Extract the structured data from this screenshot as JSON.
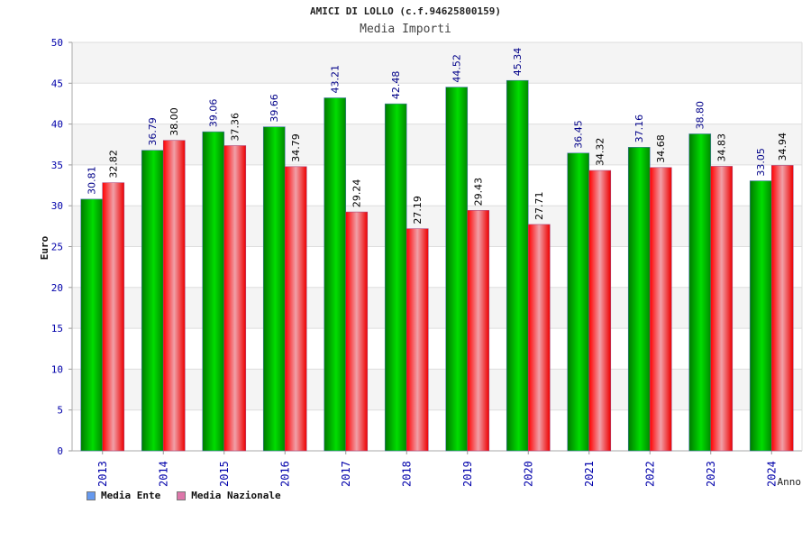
{
  "chart_data": {
    "type": "bar",
    "title": "AMICI DI LOLLO (c.f.94625800159)",
    "subtitle": "Media Importi",
    "xlabel": "Anno",
    "ylabel": "Euro",
    "ylim": [
      0,
      50
    ],
    "yticks": [
      0,
      5,
      10,
      15,
      20,
      25,
      30,
      35,
      40,
      45,
      50
    ],
    "grid": true,
    "legend_position": "bottom-left",
    "categories": [
      "2013",
      "2014",
      "2015",
      "2016",
      "2017",
      "2018",
      "2019",
      "2020",
      "2021",
      "2022",
      "2023",
      "2024"
    ],
    "series": [
      {
        "name": "Media Ente",
        "color": "#00b000",
        "legend_color": "#6699ee",
        "values": [
          30.81,
          36.79,
          39.06,
          39.66,
          43.21,
          42.48,
          44.52,
          45.34,
          36.45,
          37.16,
          38.8,
          33.05
        ],
        "labels": [
          "30.81",
          "36.79",
          "39.06",
          "39.66",
          "43.21",
          "42.48",
          "44.52",
          "45.34",
          "36.45",
          "37.16",
          "38.80",
          "33.05"
        ]
      },
      {
        "name": "Media Nazionale",
        "color": "#ee0000",
        "legend_color": "#dd77aa",
        "values": [
          32.82,
          38.0,
          37.36,
          34.79,
          29.24,
          27.19,
          29.43,
          27.71,
          34.32,
          34.68,
          34.83,
          34.94
        ],
        "labels": [
          "32.82",
          "38.00",
          "37.36",
          "34.79",
          "29.24",
          "27.19",
          "29.43",
          "27.71",
          "34.32",
          "34.68",
          "34.83",
          "34.94"
        ]
      }
    ]
  }
}
